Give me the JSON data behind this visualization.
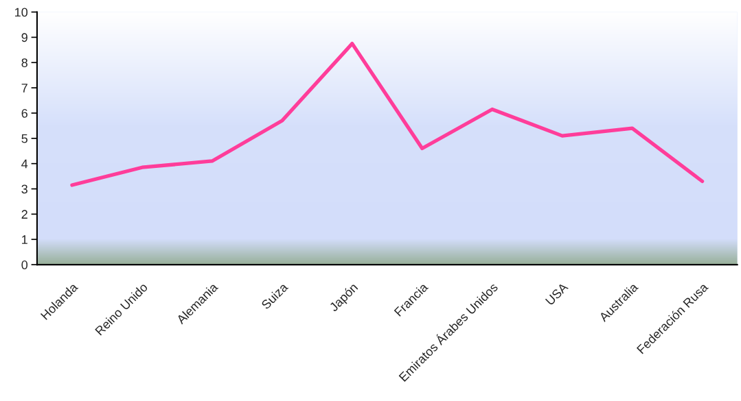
{
  "chart_data": {
    "type": "line",
    "categories": [
      "Holanda",
      "Reino Unido",
      "Alemania",
      "Suiza",
      "Japón",
      "Francia",
      "Emiratos Árabes Unidos",
      "USA",
      "Australia",
      "Federación Rusa"
    ],
    "series": [
      {
        "color": "#ff3d9a",
        "values": [
          3.15,
          3.85,
          4.1,
          5.7,
          8.75,
          4.6,
          6.15,
          5.1,
          5.4,
          3.3
        ]
      }
    ],
    "ylim": [
      0,
      10
    ],
    "yticks": [
      0,
      1,
      2,
      3,
      4,
      5,
      6,
      7,
      8,
      9,
      10
    ],
    "grid": false,
    "legend": false,
    "marker": "none",
    "line_style": "solid"
  }
}
